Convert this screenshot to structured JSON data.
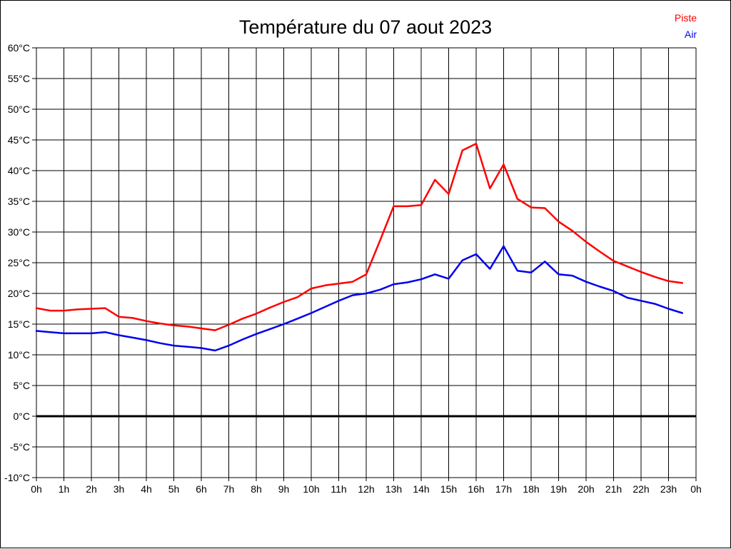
{
  "window": {
    "background": "#ffffff",
    "border_color": "#000000",
    "text_color": "#000000"
  },
  "legend": {
    "position": "top-right",
    "items": [
      {
        "label": "Piste",
        "color": "#ff0000"
      },
      {
        "label": "Air",
        "color": "#0000ee"
      }
    ]
  },
  "chart_data": {
    "type": "line",
    "title": "Température du 07 aout 2023",
    "xlabel": "",
    "ylabel": "",
    "xlim": [
      0,
      24
    ],
    "ylim": [
      -10,
      60
    ],
    "y_step": 5,
    "x_step": 1,
    "grid": true,
    "zero_line_value": 0,
    "legend_position": "top-right",
    "x_tick_labels": [
      "0h",
      "1h",
      "2h",
      "3h",
      "4h",
      "5h",
      "6h",
      "7h",
      "8h",
      "9h",
      "10h",
      "11h",
      "12h",
      "13h",
      "14h",
      "15h",
      "16h",
      "17h",
      "18h",
      "19h",
      "20h",
      "21h",
      "22h",
      "23h",
      "0h"
    ],
    "y_tick_labels": [
      "60°C",
      "55°C",
      "50°C",
      "45°C",
      "40°C",
      "35°C",
      "30°C",
      "25°C",
      "20°C",
      "15°C",
      "10°C",
      "5°C",
      "0°C",
      "-5°C",
      "-10°C"
    ],
    "x": [
      0,
      0.5,
      1,
      1.5,
      2,
      2.5,
      3,
      3.5,
      4,
      4.5,
      5,
      5.5,
      6,
      6.5,
      7,
      7.5,
      8,
      8.5,
      9,
      9.5,
      10,
      10.5,
      11,
      11.5,
      12,
      12.5,
      13,
      13.5,
      14,
      14.5,
      15,
      15.5,
      16,
      16.5,
      17,
      17.5,
      18,
      18.5,
      19,
      19.5,
      20,
      20.5,
      21,
      21.5,
      22,
      22.5,
      23,
      23.5
    ],
    "series": [
      {
        "name": "Piste",
        "color": "#ff0000",
        "values": [
          17.6,
          17.2,
          17.2,
          17.4,
          17.5,
          17.6,
          16.2,
          16.0,
          15.5,
          15.1,
          14.8,
          14.6,
          14.3,
          14.0,
          14.9,
          15.9,
          16.7,
          17.7,
          18.6,
          19.4,
          20.8,
          21.3,
          21.6,
          21.9,
          23.1,
          28.6,
          34.2,
          34.2,
          34.4,
          38.5,
          36.2,
          43.3,
          44.4,
          37.1,
          41.0,
          35.4,
          34.0,
          33.9,
          31.7,
          30.2,
          28.4,
          26.8,
          25.3,
          24.4,
          23.5,
          22.7,
          22.0,
          21.7
        ]
      },
      {
        "name": "Air",
        "color": "#0000ee",
        "values": [
          13.9,
          13.7,
          13.5,
          13.5,
          13.5,
          13.7,
          13.2,
          12.8,
          12.4,
          11.9,
          11.5,
          11.3,
          11.1,
          10.7,
          11.5,
          12.5,
          13.4,
          14.2,
          15.0,
          15.9,
          16.8,
          17.8,
          18.8,
          19.7,
          20.0,
          20.6,
          21.5,
          21.8,
          22.3,
          23.1,
          22.4,
          25.4,
          26.4,
          24.0,
          27.7,
          23.7,
          23.4,
          25.2,
          23.1,
          22.9,
          21.9,
          21.1,
          20.4,
          19.3,
          18.8,
          18.3,
          17.5,
          16.8
        ]
      }
    ]
  }
}
